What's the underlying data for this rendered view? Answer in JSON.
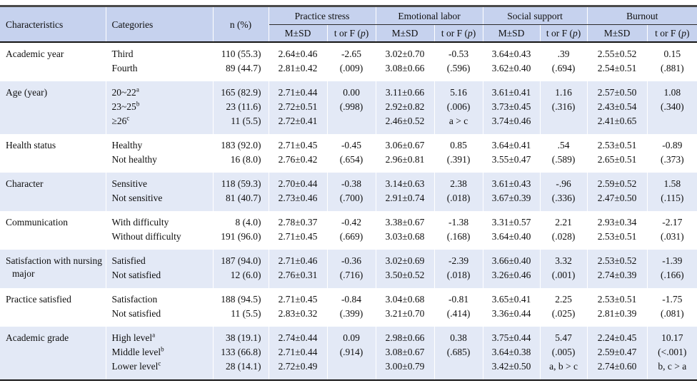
{
  "table": {
    "headers": {
      "characteristics": "Characteristics",
      "categories": "Categories",
      "n": "n (%)",
      "groups": [
        "Practice stress",
        "Emotional labor",
        "Social support",
        "Burnout"
      ],
      "msd": "M±SD",
      "tf": {
        "before": "t or F (",
        "italic": "p",
        "after": ")"
      }
    },
    "colors": {
      "header_bg": "#c6d2ee",
      "shaded_row_bg": "#e3e9f6",
      "rule_dark": "#141414",
      "column_separator": "#ffffff"
    },
    "groups": [
      {
        "characteristic": "Academic year",
        "shaded": false,
        "rows": [
          {
            "category": "Third",
            "sup": "",
            "n": "110 (55.3)",
            "stats": [
              "2.64±0.46",
              "-2.65",
              "3.02±0.70",
              "-0.53",
              "3.64±0.43",
              ".39",
              "2.55±0.52",
              "0.15"
            ]
          },
          {
            "category": "Fourth",
            "sup": "",
            "n": "89 (44.7)",
            "stats": [
              "2.81±0.42",
              "(.009)",
              "3.08±0.66",
              "(.596)",
              "3.62±0.40",
              "(.694)",
              "2.54±0.51",
              "(.881)"
            ]
          }
        ]
      },
      {
        "characteristic": "Age (year)",
        "shaded": true,
        "rows": [
          {
            "category": "20~22",
            "sup": "a",
            "n": "165 (82.9)",
            "stats": [
              "2.71±0.44",
              "0.00",
              "3.11±0.66",
              "5.16",
              "3.61±0.41",
              "1.16",
              "2.57±0.50",
              "1.08"
            ]
          },
          {
            "category": "23~25",
            "sup": "b",
            "n": "23 (11.6)",
            "stats": [
              "2.72±0.51",
              "(.998)",
              "2.92±0.82",
              "(.006)",
              "3.73±0.45",
              "(.316)",
              "2.43±0.54",
              "(.340)"
            ]
          },
          {
            "category": "≥26",
            "sup": "c",
            "n": "11 (5.5)",
            "stats": [
              "2.72±0.41",
              "",
              "2.46±0.52",
              "a > c",
              "3.74±0.46",
              "",
              "2.41±0.65",
              ""
            ]
          }
        ]
      },
      {
        "characteristic": "Health status",
        "shaded": false,
        "rows": [
          {
            "category": "Healthy",
            "sup": "",
            "n": "183 (92.0)",
            "stats": [
              "2.71±0.45",
              "-0.45",
              "3.06±0.67",
              "0.85",
              "3.64±0.41",
              ".54",
              "2.53±0.51",
              "-0.89"
            ]
          },
          {
            "category": "Not healthy",
            "sup": "",
            "n": "16 (8.0)",
            "stats": [
              "2.76±0.42",
              "(.654)",
              "2.96±0.81",
              "(.391)",
              "3.55±0.47",
              "(.589)",
              "2.65±0.51",
              "(.373)"
            ]
          }
        ]
      },
      {
        "characteristic": "Character",
        "shaded": true,
        "rows": [
          {
            "category": "Sensitive",
            "sup": "",
            "n": "118 (59.3)",
            "stats": [
              "2.70±0.44",
              "-0.38",
              "3.14±0.63",
              "2.38",
              "3.61±0.43",
              "-.96",
              "2.59±0.52",
              "1.58"
            ]
          },
          {
            "category": "Not sensitive",
            "sup": "",
            "n": "81 (40.7)",
            "stats": [
              "2.73±0.46",
              "(.700)",
              "2.91±0.74",
              "(.018)",
              "3.67±0.39",
              "(.336)",
              "2.47±0.50",
              "(.115)"
            ]
          }
        ]
      },
      {
        "characteristic": "Communication",
        "shaded": false,
        "rows": [
          {
            "category": "With difficulty",
            "sup": "",
            "n": "8 (4.0)",
            "stats": [
              "2.78±0.37",
              "-0.42",
              "3.38±0.67",
              "-1.38",
              "3.31±0.57",
              "2.21",
              "2.93±0.34",
              "-2.17"
            ]
          },
          {
            "category": "Without difficulty",
            "sup": "",
            "n": "191 (96.0)",
            "stats": [
              "2.71±0.45",
              "(.669)",
              "3.03±0.68",
              "(.168)",
              "3.64±0.40",
              "(.028)",
              "2.53±0.51",
              "(.031)"
            ]
          }
        ]
      },
      {
        "characteristic": "Satisfaction with nursing major",
        "shaded": true,
        "rows": [
          {
            "category": "Satisfied",
            "sup": "",
            "n": "187 (94.0)",
            "stats": [
              "2.71±0.46",
              "-0.36",
              "3.02±0.69",
              "-2.39",
              "3.66±0.40",
              "3.32",
              "2.53±0.52",
              "-1.39"
            ]
          },
          {
            "category": "Not satisfied",
            "sup": "",
            "n": "12 (6.0)",
            "stats": [
              "2.76±0.31",
              "(.716)",
              "3.50±0.52",
              "(.018)",
              "3.26±0.46",
              "(.001)",
              "2.74±0.39",
              "(.166)"
            ]
          }
        ]
      },
      {
        "characteristic": "Practice satisfied",
        "shaded": false,
        "rows": [
          {
            "category": "Satisfaction",
            "sup": "",
            "n": "188 (94.5)",
            "stats": [
              "2.71±0.45",
              "-0.84",
              "3.04±0.68",
              "-0.81",
              "3.65±0.41",
              "2.25",
              "2.53±0.51",
              "-1.75"
            ]
          },
          {
            "category": "Not satisfied",
            "sup": "",
            "n": "11 (5.5)",
            "stats": [
              "2.83±0.32",
              "(.399)",
              "3.21±0.70",
              "(.414)",
              "3.36±0.44",
              "(.025)",
              "2.81±0.39",
              "(.081)"
            ]
          }
        ]
      },
      {
        "characteristic": "Academic grade",
        "shaded": true,
        "rows": [
          {
            "category": "High level",
            "sup": "a",
            "n": "38 (19.1)",
            "stats": [
              "2.74±0.44",
              "0.09",
              "2.98±0.66",
              "0.38",
              "3.75±0.44",
              "5.47",
              "2.24±0.45",
              "10.17"
            ]
          },
          {
            "category": "Middle level",
            "sup": "b",
            "n": "133 (66.8)",
            "stats": [
              "2.71±0.44",
              "(.914)",
              "3.08±0.67",
              "(.685)",
              "3.64±0.38",
              "(.005)",
              "2.59±0.47",
              "(<.001)"
            ]
          },
          {
            "category": "Lower level",
            "sup": "c",
            "n": "28 (14.1)",
            "stats": [
              "2.72±0.49",
              "",
              "3.00±0.79",
              "",
              "3.42±0.50",
              "a, b > c",
              "2.74±0.60",
              "b, c > a"
            ]
          }
        ]
      }
    ]
  }
}
